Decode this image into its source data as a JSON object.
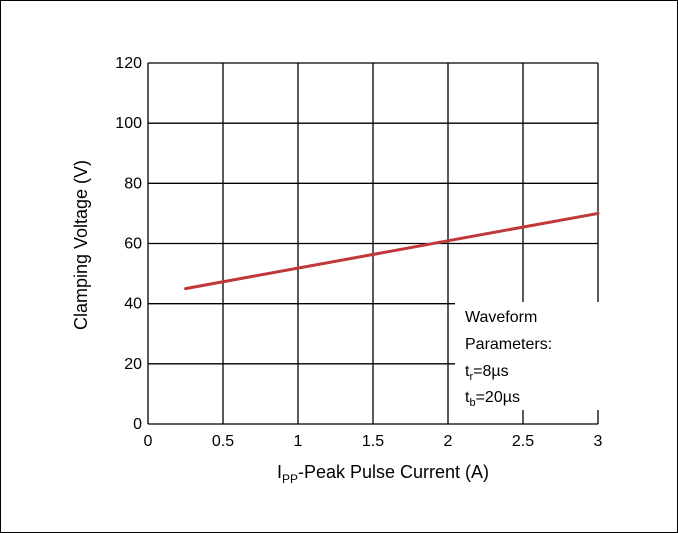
{
  "chart_data": {
    "type": "line",
    "title": "",
    "xlabel": {
      "main": "I",
      "sub": "PP",
      "rest": "-Peak Pulse Current (A)"
    },
    "ylabel": "Clamping Voltage (V)",
    "xlim": [
      0,
      3
    ],
    "ylim": [
      0,
      120
    ],
    "x_ticks": [
      "0",
      "0.5",
      "1",
      "1.5",
      "2",
      "2.5",
      "3"
    ],
    "y_ticks": [
      "0",
      "20",
      "40",
      "60",
      "80",
      "100",
      "120"
    ],
    "grid": true,
    "series": [
      {
        "color": "#c0383a",
        "x": [
          0.25,
          3.0
        ],
        "y": [
          45,
          70
        ]
      }
    ],
    "annotation": {
      "lines": [
        {
          "text": "Waveform"
        },
        {
          "text": "Parameters:"
        },
        {
          "main": "t",
          "sub": "r",
          "rest": "=8µs"
        },
        {
          "main": "t",
          "sub": "b",
          "rest": "=20µs"
        }
      ]
    }
  }
}
